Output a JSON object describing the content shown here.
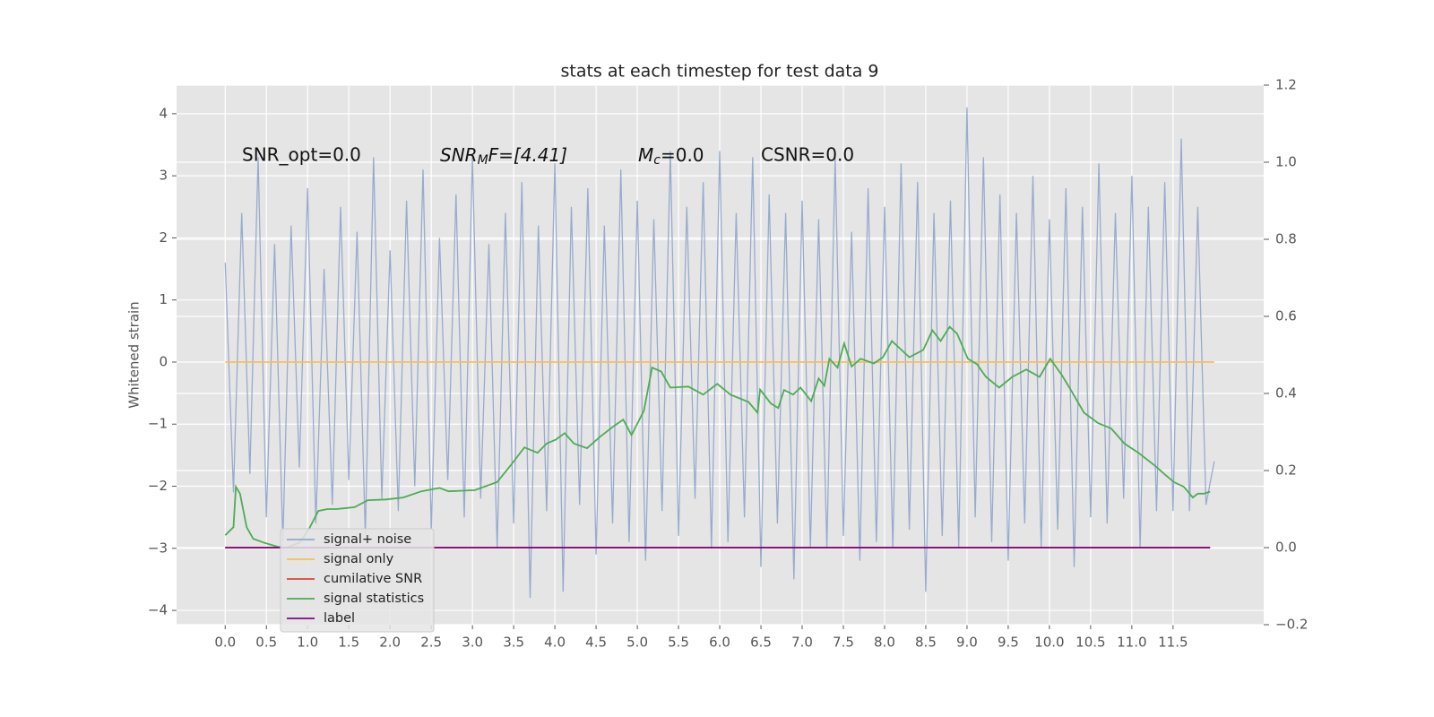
{
  "chart_data": {
    "type": "line",
    "title": "stats at each timestep for test data 9",
    "ylabel": "Whitened strain",
    "annotations": [
      "SNR_opt=0.0",
      [
        "SNR",
        "M",
        "F=[4.41]"
      ],
      [
        "M",
        "c",
        "=0.0"
      ],
      "CSNR=0.0"
    ],
    "xlim": [
      -0.59,
      12.6
    ],
    "ylim": [
      -4.23,
      4.46
    ],
    "y2lim": [
      -0.2,
      1.2
    ],
    "xticks": [
      {
        "value": 0,
        "label": "0.0"
      },
      0.5,
      {
        "value": 1,
        "label": "1.0"
      },
      1.5,
      {
        "value": 2,
        "label": "2.0"
      },
      2.5,
      {
        "value": 3,
        "label": "3.0"
      },
      3.5,
      {
        "value": 4,
        "label": "4.0"
      },
      4.5,
      {
        "value": 5,
        "label": "5.0"
      },
      5.5,
      {
        "value": 6,
        "label": "6.0"
      },
      6.5,
      {
        "value": 7,
        "label": "7.0"
      },
      7.5,
      {
        "value": 8,
        "label": "8.0"
      },
      8.5,
      {
        "value": 9,
        "label": "9.0"
      },
      9.5,
      {
        "value": 10,
        "label": "10.0"
      },
      10.5,
      {
        "value": 11,
        "label": "11.0"
      },
      11.5
    ],
    "yticks": [
      {
        "value": -4,
        "label": "−4"
      },
      {
        "value": -3,
        "label": "−3"
      },
      {
        "value": -2,
        "label": "−2"
      },
      {
        "value": -1,
        "label": "−1"
      },
      0,
      1,
      2,
      3,
      4
    ],
    "y2ticks": [
      {
        "value": -0.2,
        "label": "−0.2"
      },
      {
        "value": 0,
        "label": "0.0"
      },
      0.2,
      0.4,
      0.6,
      0.8,
      {
        "value": 1,
        "label": "1.0"
      },
      1.2
    ],
    "grid": true,
    "legend": "lower left",
    "series": [
      {
        "name": "signal+ noise",
        "color": "#93a8cc",
        "axis": "y",
        "x": [
          0,
          0.1,
          0.2,
          0.3,
          0.4,
          0.5,
          0.6,
          0.7,
          0.8,
          0.9,
          1,
          1.1,
          1.2,
          1.3,
          1.4,
          1.5,
          1.6,
          1.7,
          1.8,
          1.9,
          2,
          2.1,
          2.2,
          2.3,
          2.4,
          2.5,
          2.6,
          2.7,
          2.8,
          2.9,
          3,
          3.1,
          3.2,
          3.3,
          3.4,
          3.5,
          3.6,
          3.7,
          3.8,
          3.9,
          4,
          4.1,
          4.2,
          4.3,
          4.4,
          4.5,
          4.6,
          4.7,
          4.8,
          4.9,
          5,
          5.1,
          5.2,
          5.3,
          5.4,
          5.5,
          5.6,
          5.7,
          5.8,
          5.9,
          6,
          6.1,
          6.2,
          6.3,
          6.4,
          6.5,
          6.6,
          6.7,
          6.8,
          6.9,
          7,
          7.1,
          7.2,
          7.3,
          7.4,
          7.5,
          7.6,
          7.7,
          7.8,
          7.9,
          8,
          8.1,
          8.2,
          8.3,
          8.4,
          8.5,
          8.6,
          8.7,
          8.8,
          8.9,
          9,
          9.1,
          9.2,
          9.3,
          9.4,
          9.5,
          9.6,
          9.7,
          9.8,
          9.9,
          10,
          10.1,
          10.2,
          10.3,
          10.4,
          10.5,
          10.6,
          10.7,
          10.8,
          10.9,
          11,
          11.1,
          11.2,
          11.3,
          11.4,
          11.5,
          11.6,
          11.7,
          11.8,
          11.9,
          12
        ],
        "values": [
          1.6,
          -2.1,
          2.4,
          -1.8,
          3.3,
          -2.5,
          1.9,
          -2.9,
          2.2,
          -1.7,
          2.8,
          -2.6,
          1.5,
          -2.3,
          2.5,
          -1.9,
          2.1,
          -2.8,
          3.3,
          -2.2,
          1.8,
          -2.4,
          2.6,
          -2.0,
          3.1,
          -2.7,
          2.0,
          -1.9,
          2.7,
          -2.5,
          3.3,
          -2.2,
          1.9,
          -3.0,
          2.4,
          -2.6,
          2.9,
          -3.8,
          2.2,
          -2.4,
          3.2,
          -3.7,
          2.5,
          -2.3,
          2.8,
          -3.1,
          2.2,
          -2.6,
          3.1,
          -2.9,
          2.6,
          -3.2,
          2.3,
          -2.4,
          3.4,
          -2.8,
          2.5,
          -2.2,
          2.9,
          -3.0,
          3.4,
          -2.9,
          2.4,
          -2.5,
          3.3,
          -3.3,
          2.7,
          -2.6,
          2.4,
          -3.5,
          2.6,
          -3.0,
          2.3,
          -3.0,
          3.3,
          -2.8,
          2.1,
          -3.2,
          2.8,
          -2.9,
          2.5,
          -3.0,
          3.2,
          -2.7,
          2.9,
          -3.7,
          2.4,
          -2.8,
          2.6,
          -3.0,
          4.1,
          -2.5,
          3.3,
          -2.9,
          2.7,
          -3.2,
          2.4,
          -2.6,
          3.0,
          -3.0,
          2.3,
          -2.7,
          2.8,
          -3.3,
          2.5,
          -2.5,
          3.2,
          -2.6,
          2.4,
          -2.2,
          3.0,
          -3.0,
          2.5,
          -2.4,
          2.9,
          -2.4,
          3.6,
          -2.4,
          2.5,
          -2.3,
          -1.6
        ]
      },
      {
        "name": "signal only",
        "color": "#f5bf5c",
        "axis": "y",
        "x": [
          0,
          12
        ],
        "values": [
          0,
          0
        ]
      },
      {
        "name": "cumilative SNR",
        "color": "#d9443a",
        "axis": "y2",
        "x": [
          0,
          11.95
        ],
        "values": [
          0,
          0
        ]
      },
      {
        "name": "signal statistics",
        "color": "#4eab55",
        "axis": "y2",
        "x": [
          0,
          0.1,
          0.13,
          0.18,
          0.26,
          0.34,
          0.48,
          0.64,
          0.75,
          0.91,
          1.02,
          1.13,
          1.24,
          1.35,
          1.57,
          1.73,
          1.95,
          2.16,
          2.38,
          2.6,
          2.71,
          3.03,
          3.3,
          3.47,
          3.63,
          3.79,
          3.9,
          4.01,
          4.12,
          4.23,
          4.39,
          4.55,
          4.72,
          4.83,
          4.93,
          5.08,
          5.18,
          5.29,
          5.4,
          5.62,
          5.8,
          5.97,
          6.13,
          6.35,
          6.46,
          6.49,
          6.62,
          6.71,
          6.78,
          6.89,
          6.98,
          7.11,
          7.2,
          7.27,
          7.33,
          7.43,
          7.51,
          7.6,
          7.71,
          7.87,
          7.98,
          8.09,
          8.3,
          8.47,
          8.58,
          8.68,
          8.79,
          8.88,
          9.01,
          9.12,
          9.23,
          9.39,
          9.55,
          9.72,
          9.88,
          10.01,
          10.15,
          10.26,
          10.42,
          10.59,
          10.75,
          10.91,
          11.08,
          11.29,
          11.4,
          11.51,
          11.63,
          11.74,
          11.8,
          11.87,
          11.95
        ],
        "values": [
          0.032,
          0.053,
          0.158,
          0.14,
          0.053,
          0.023,
          0.012,
          0.002,
          0,
          0.014,
          0.05,
          0.095,
          0.1,
          0.1,
          0.105,
          0.123,
          0.125,
          0.13,
          0.146,
          0.155,
          0.146,
          0.149,
          0.17,
          0.215,
          0.26,
          0.246,
          0.27,
          0.28,
          0.297,
          0.27,
          0.258,
          0.288,
          0.316,
          0.332,
          0.292,
          0.355,
          0.467,
          0.457,
          0.415,
          0.418,
          0.397,
          0.425,
          0.397,
          0.378,
          0.35,
          0.41,
          0.374,
          0.362,
          0.409,
          0.397,
          0.415,
          0.38,
          0.439,
          0.42,
          0.49,
          0.467,
          0.53,
          0.47,
          0.49,
          0.478,
          0.494,
          0.536,
          0.494,
          0.513,
          0.564,
          0.536,
          0.573,
          0.555,
          0.49,
          0.476,
          0.443,
          0.415,
          0.443,
          0.462,
          0.443,
          0.49,
          0.448,
          0.409,
          0.35,
          0.323,
          0.309,
          0.27,
          0.246,
          0.211,
          0.19,
          0.17,
          0.158,
          0.13,
          0.14,
          0.14,
          0.145
        ]
      },
      {
        "name": "label",
        "color": "#7b0a7e",
        "axis": "y2",
        "x": [
          0,
          11.95
        ],
        "values": [
          0,
          0
        ]
      }
    ]
  }
}
